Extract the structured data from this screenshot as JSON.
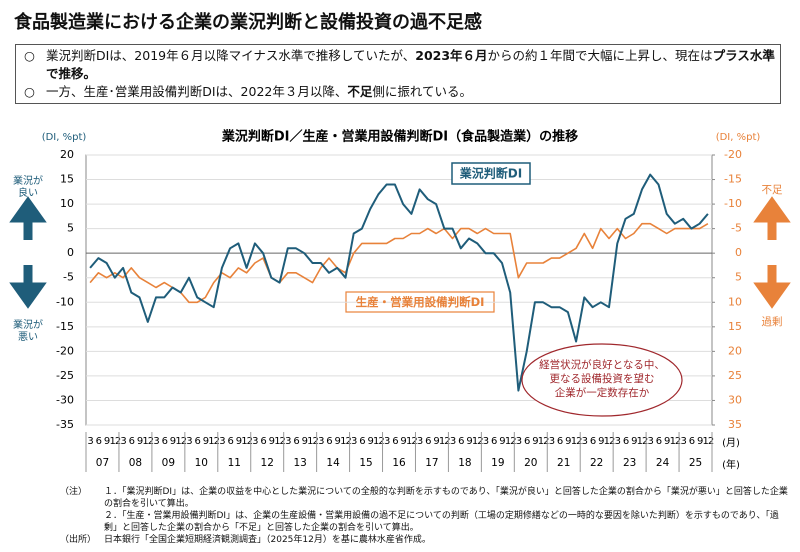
{
  "header": {
    "title": "食品製造業における企業の業況判断と設備投資の過不足感"
  },
  "bullet_marker": "○",
  "bullets": [
    {
      "segments": [
        {
          "text": "業況判断DIは、2019年６月以降マイナス水準で推移していたが、"
        },
        {
          "text": "2023年６月",
          "bold": true
        },
        {
          "text": "からの約１年間で大幅に上昇し、現在は"
        },
        {
          "text": "プラス水準で推移。",
          "bold": true
        }
      ]
    },
    {
      "segments": [
        {
          "text": "一方、生産･営業用設備判断DIは、2022年３月以降、"
        },
        {
          "text": "不足",
          "bold": true
        },
        {
          "text": "側に振れている。"
        }
      ]
    }
  ],
  "chart_data": {
    "type": "line",
    "title": "業況判断DI／生産・営業用設備判断DI（食品製造業）の推移",
    "y_unit": "(DI, %pt)",
    "y2_unit": "(DI, %pt)",
    "x_month_unit": "(月)",
    "x_year_unit": "(年)",
    "categories": [
      "3",
      "6",
      "9",
      "12",
      "3",
      "6",
      "9",
      "12",
      "3",
      "6",
      "9",
      "12",
      "3",
      "6",
      "9",
      "12",
      "3",
      "6",
      "9",
      "12",
      "3",
      "6",
      "9",
      "12",
      "3",
      "6",
      "9",
      "12",
      "3",
      "6",
      "9",
      "12",
      "3",
      "6",
      "9",
      "12",
      "3",
      "6",
      "9",
      "12",
      "3",
      "6",
      "9",
      "12",
      "3",
      "6",
      "9",
      "12",
      "3",
      "6",
      "9",
      "12",
      "3",
      "6",
      "9",
      "12",
      "3",
      "6",
      "9",
      "12",
      "3",
      "6",
      "9",
      "12",
      "3",
      "6",
      "9",
      "12",
      "3",
      "6",
      "9",
      "12",
      "3",
      "6",
      "9",
      "12"
    ],
    "years": [
      "07",
      "08",
      "09",
      "10",
      "11",
      "12",
      "13",
      "14",
      "15",
      "16",
      "17",
      "18",
      "19",
      "20",
      "21",
      "22",
      "23",
      "24",
      "25"
    ],
    "ylim": [
      -35,
      20
    ],
    "yticks": [
      -35,
      -30,
      -25,
      -20,
      -15,
      -10,
      -5,
      0,
      5,
      10,
      15,
      20
    ],
    "y2lim": [
      -20,
      35
    ],
    "y2ticks": [
      -20,
      -15,
      -10,
      -5,
      0,
      5,
      10,
      15,
      20,
      25,
      30,
      35
    ],
    "y2_inverted": true,
    "grid": true,
    "series": [
      {
        "name": "業況判断DI",
        "color": "#1f5d7a",
        "values": [
          -3,
          -1,
          -2,
          -5,
          -3,
          -8,
          -9,
          -14,
          -9,
          -9,
          -7,
          -8,
          -5,
          -9,
          -10,
          -11,
          -3,
          1,
          2,
          -3,
          2,
          0,
          -5,
          -6,
          1,
          1,
          0,
          -2,
          -2,
          -4,
          -3,
          -5,
          4,
          5,
          9,
          12,
          14,
          14,
          10,
          8,
          13,
          11,
          10,
          5,
          5,
          1,
          3,
          2,
          0,
          0,
          -2,
          -8,
          -28,
          -20,
          -10,
          -10,
          -11,
          -11,
          -12,
          -18,
          -9,
          -11,
          -10,
          -11,
          2,
          7,
          8,
          13,
          16,
          14,
          8,
          6,
          7,
          5,
          6,
          8
        ]
      },
      {
        "name": "生産・営業用設備判断DI",
        "color": "#e8823a",
        "axis": "y2",
        "values": [
          6,
          4,
          5,
          4,
          5,
          3,
          5,
          6,
          7,
          6,
          7,
          8,
          10,
          10,
          9,
          6,
          4,
          5,
          3,
          4,
          2,
          1,
          5,
          6,
          4,
          4,
          5,
          6,
          3,
          1,
          3,
          4,
          0,
          -2,
          -2,
          -2,
          -2,
          -3,
          -3,
          -4,
          -4,
          -5,
          -4,
          -5,
          -3,
          -5,
          -5,
          -4,
          -5,
          -4,
          -4,
          -4,
          5,
          2,
          2,
          2,
          1,
          1,
          0,
          -1,
          -4,
          -1,
          -5,
          -3,
          -5,
          -3,
          -4,
          -6,
          -6,
          -5,
          -4,
          -5,
          -5,
          -5,
          -5,
          -6
        ]
      }
    ],
    "left_labels": {
      "good": [
        "業況が",
        "良い"
      ],
      "bad": [
        "業況が",
        "悪い"
      ]
    },
    "right_labels": {
      "shortage": "不足",
      "excess": "過剰"
    },
    "annotation": [
      "経営状況が良好となる中、",
      "更なる設備投資を望む",
      "企業が一定数存在か"
    ]
  },
  "notes": {
    "label": "（注）",
    "items": [
      "１．「業況判断DI」は、企業の収益を中心とした業況についての全般的な判断を示すものであり、「業況が良い」と回答した企業の割合から「業況が悪い」と回答した企業の割合を引いて算出。",
      "２．「生産・営業用設備判断DI」は、企業の生産設備・営業用設備の過不足についての判断（工場の定期修繕などの一時的な要因を除いた判断）を示すものであり、「過剰」と回答した企業の割合から「不足」と回答した企業の割合を引いて算出。"
    ]
  },
  "source": {
    "label": "（出所）",
    "text": "日本銀行「全国企業短期経済観測調査」（2025年12月）を基に農林水産省作成。"
  }
}
